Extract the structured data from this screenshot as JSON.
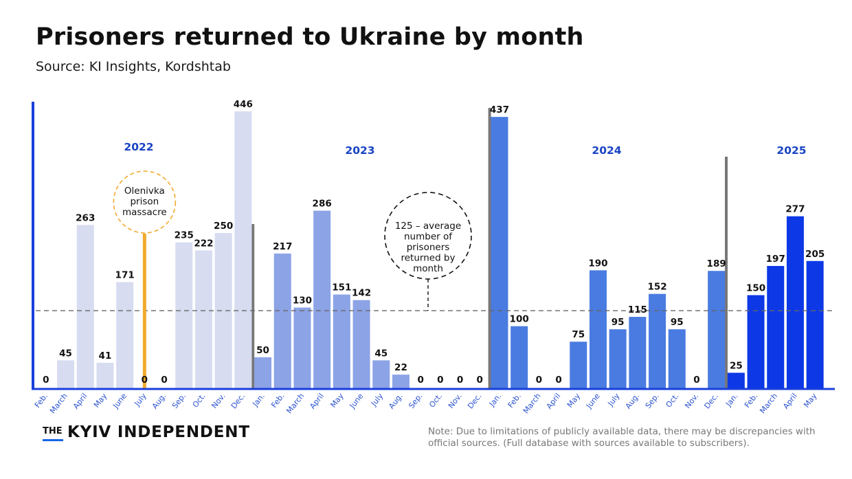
{
  "title": "Prisoners returned to Ukraine by month",
  "subtitle": "Source: KI Insights, Kordshtab",
  "brand": {
    "prefix": "THE",
    "name": "KYIV INDEPENDENT"
  },
  "note": "Note: Due to limitations of publicly available data, there may be discrepancies with official sources. (Full database with sources available to subscribers).",
  "colors": {
    "2022": "#d7dcf0",
    "2023": "#8ca3e6",
    "2024": "#4a7be0",
    "2025": "#0d38e6",
    "axis": "#1a3fdb",
    "year_label": "#1a44c4",
    "event": "#f2a92e",
    "separator": "#777777"
  },
  "chart_data": {
    "type": "bar",
    "title": "Prisoners returned to Ukraine by month",
    "subtitle": "Source: KI Insights, Kordshtab",
    "categories": [
      "Feb.",
      "March",
      "April",
      "May",
      "June",
      "July",
      "Aug.",
      "Sep.",
      "Oct.",
      "Nov.",
      "Dec.",
      "Jan.",
      "Feb.",
      "March",
      "April",
      "May",
      "June",
      "July",
      "Aug.",
      "Sep.",
      "Oct.",
      "Nov.",
      "Dec.",
      "Jan.",
      "Feb.",
      "March",
      "April",
      "May",
      "June",
      "July",
      "Aug.",
      "Sep.",
      "Oct.",
      "Nov.",
      "Dec.",
      "Jan.",
      "Feb.",
      "March",
      "April",
      "May"
    ],
    "years": [
      "2022",
      "2022",
      "2022",
      "2022",
      "2022",
      "2022",
      "2022",
      "2022",
      "2022",
      "2022",
      "2022",
      "2023",
      "2023",
      "2023",
      "2023",
      "2023",
      "2023",
      "2023",
      "2023",
      "2023",
      "2023",
      "2023",
      "2023",
      "2024",
      "2024",
      "2024",
      "2024",
      "2024",
      "2024",
      "2024",
      "2024",
      "2024",
      "2024",
      "2024",
      "2024",
      "2025",
      "2025",
      "2025",
      "2025",
      "2025"
    ],
    "values": [
      0,
      45,
      263,
      41,
      171,
      0,
      0,
      235,
      222,
      250,
      446,
      50,
      217,
      130,
      286,
      151,
      142,
      45,
      22,
      0,
      0,
      0,
      0,
      437,
      100,
      0,
      0,
      75,
      190,
      95,
      115,
      152,
      95,
      0,
      189,
      25,
      150,
      197,
      277,
      205
    ],
    "year_labels": [
      "2022",
      "2023",
      "2024",
      "2025"
    ],
    "average": {
      "value": 125,
      "label_lines": [
        "125 – average",
        "number of",
        "prisoners",
        "returned by",
        "month"
      ]
    },
    "annotation": {
      "category_index": 5,
      "label_lines": [
        "Olenivka",
        "prison",
        "massacre"
      ]
    },
    "ylim": [
      0,
      460
    ],
    "xlabel": "",
    "ylabel": ""
  }
}
